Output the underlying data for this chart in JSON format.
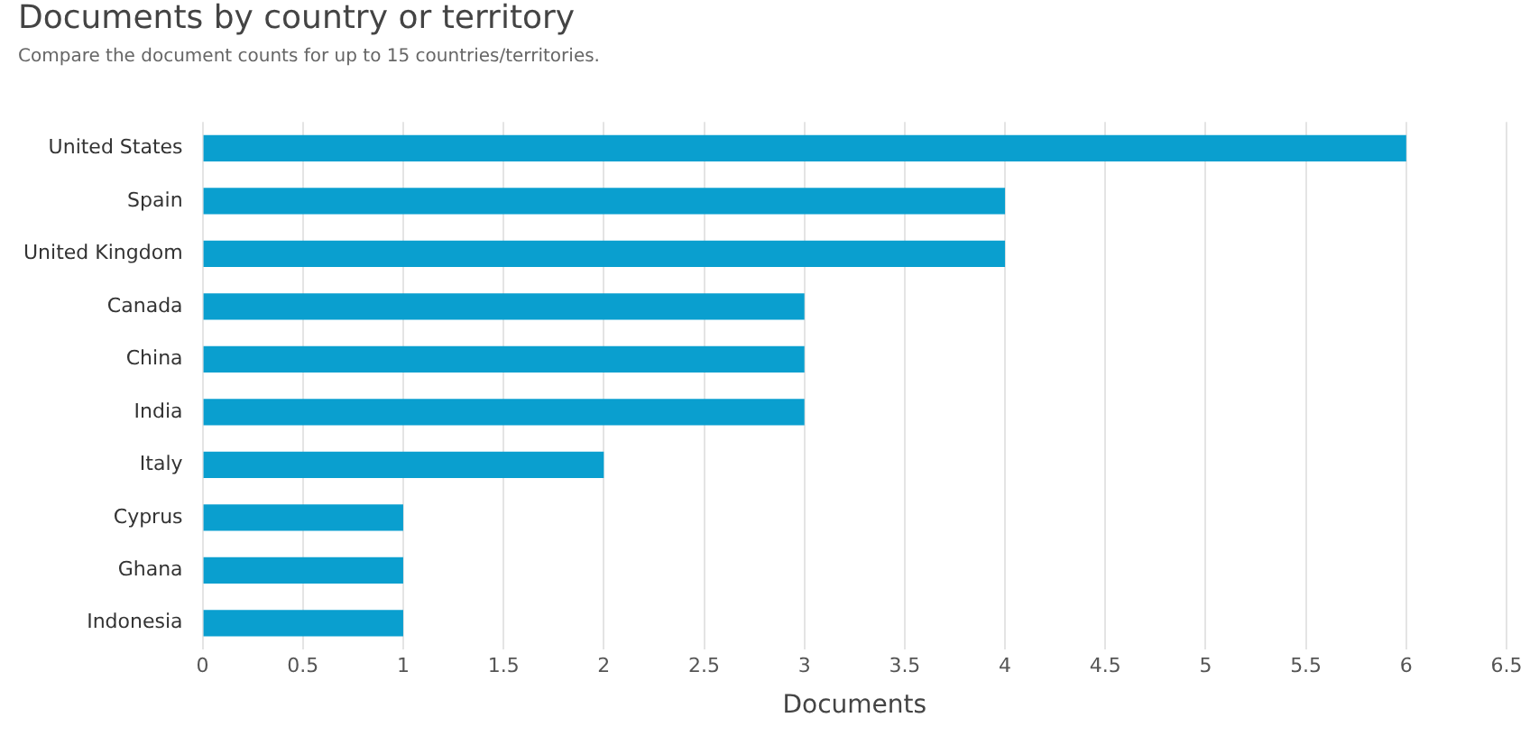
{
  "chart_data": {
    "type": "bar",
    "orientation": "horizontal",
    "title": "Documents by country or territory",
    "subtitle": "Compare the document counts for up to 15 countries/territories.",
    "xlabel": "Documents",
    "categories": [
      "United States",
      "Spain",
      "United Kingdom",
      "Canada",
      "China",
      "India",
      "Italy",
      "Cyprus",
      "Ghana",
      "Indonesia"
    ],
    "values": [
      6,
      4,
      4,
      3,
      3,
      3,
      2,
      1,
      1,
      1
    ],
    "color": "#0a9fcf",
    "xlim": [
      0,
      6.5
    ],
    "xticks": [
      0,
      0.5,
      1,
      1.5,
      2,
      2.5,
      3,
      3.5,
      4,
      4.5,
      5,
      5.5,
      6,
      6.5
    ],
    "grid": "x",
    "legend": false
  }
}
